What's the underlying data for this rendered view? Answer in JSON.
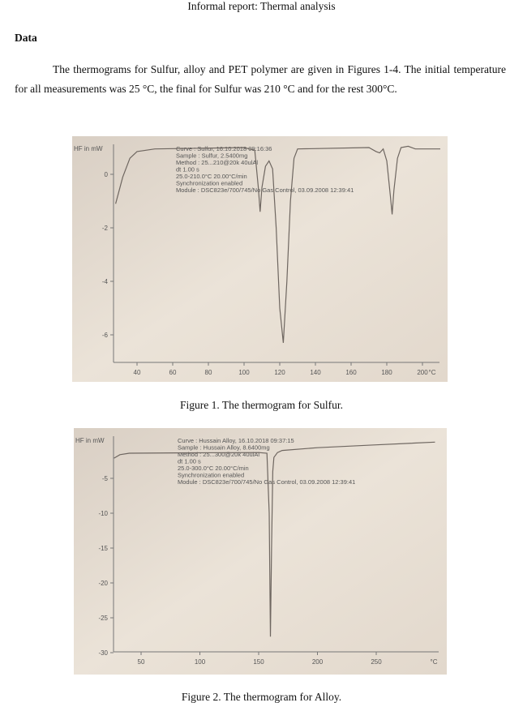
{
  "title": "Informal report: Thermal analysis",
  "heading": "Data",
  "paragraph": "The thermograms for Sulfur, alloy and PET polymer are given in Figures 1-4. The initial temperature for all measurements was 25 °C, the final for Sulfur was 210 °C and for the rest 300°C.",
  "chart_data": [
    {
      "type": "line",
      "caption": "Figure 1. The thermogram for Sulfur.",
      "ylabel": "HF in mW",
      "xunit": "°C",
      "xticks": [
        40,
        60,
        80,
        100,
        120,
        140,
        160,
        180,
        200
      ],
      "yticks": [
        0,
        -2,
        -4,
        -6
      ],
      "xlim": [
        27,
        222
      ],
      "ylim": [
        -7,
        1.2
      ],
      "info": [
        "Curve    : Sulfur, 16.10.2018 09:16:36",
        "Sample   : Sulfur, 2.5400mg",
        "Method   : 25...210@20k 40ulAl",
        "dt 1.00 s",
        "  25.0-210.0°C 20.00°C/min",
        "Synchronization enabled",
        "Module   : DSC823e/700/745/No Gas Control, 03.09.2008 12:39:41"
      ],
      "x": [
        28,
        32,
        36,
        40,
        50,
        100,
        106,
        108,
        109,
        110,
        112,
        114,
        116,
        118,
        120,
        122,
        124,
        126,
        128,
        130,
        170,
        174,
        176,
        178,
        180,
        182,
        183,
        184,
        186,
        188,
        192,
        196,
        210
      ],
      "y": [
        -1.1,
        -0.1,
        0.6,
        0.85,
        0.95,
        1.0,
        0.9,
        -0.5,
        -1.4,
        -0.5,
        0.3,
        0.5,
        0.2,
        -2,
        -5,
        -6.3,
        -4,
        -1,
        0.6,
        0.95,
        1.0,
        0.85,
        0.8,
        0.95,
        0.5,
        -0.8,
        -1.5,
        -0.6,
        0.6,
        1.0,
        1.05,
        0.95,
        0.95
      ]
    },
    {
      "type": "line",
      "caption": "Figure 2. The thermogram for Alloy.",
      "ylabel": "HF in mW",
      "xunit": "°C",
      "xticks": [
        50,
        100,
        150,
        200,
        250
      ],
      "yticks": [
        -5,
        -10,
        -15,
        -20,
        -25,
        -30
      ],
      "xlim": [
        27,
        300
      ],
      "ylim": [
        -31,
        0.5
      ],
      "info": [
        "Curve    : Hussain Alloy, 16.10.2018 09:37:15",
        "Sample   : Hussain Alloy, 8.6400mg",
        "Method   : 25...300@20k 40ulAl",
        "dt 1.00 s",
        "  25.0-300.0°C 20.00°C/min",
        "Synchronization enabled",
        "Module   : DSC823e/700/745/No Gas Control, 03.09.2008 12:39:41"
      ],
      "x": [
        27,
        32,
        40,
        80,
        150,
        157,
        159,
        160,
        161,
        162,
        163,
        166,
        170,
        200,
        250,
        300
      ],
      "y": [
        -2.1,
        -1.6,
        -1.4,
        -1.35,
        -1.3,
        -1.4,
        -10,
        -27.7,
        -15,
        -4,
        -2,
        -1.3,
        -1.0,
        -0.6,
        -0.2,
        0.2
      ]
    }
  ]
}
